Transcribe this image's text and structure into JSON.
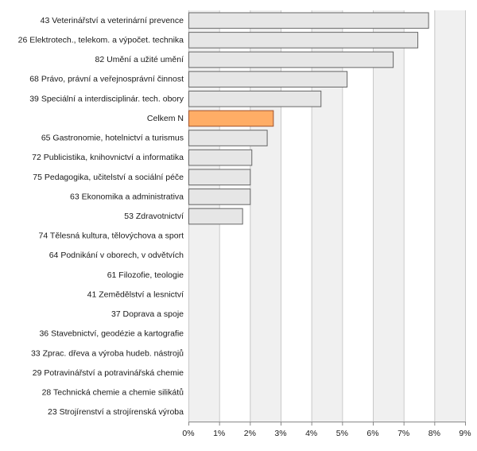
{
  "chart_data": {
    "type": "bar",
    "orientation": "horizontal",
    "categories": [
      "43 Veterinářství a veterinární prevence",
      "26 Elektrotech., telekom. a výpočet. technika",
      "82 Umění a užité umění",
      "68 Právo, právní a veřejnosprávní činnost",
      "39 Speciální a interdisciplinár. tech. obory",
      "Celkem N",
      "65 Gastronomie, hotelnictví a turismus",
      "72 Publicistika, knihovnictví a informatika",
      "75 Pedagogika, učitelství a sociální péče",
      "63 Ekonomika a administrativa",
      "53 Zdravotnictví",
      "74 Tělesná kultura, tělovýchova a sport",
      "64 Podnikání v oborech, v odvětvích",
      "61 Filozofie, teologie",
      "41 Zemědělství a lesnictví",
      "37 Doprava a spoje",
      "36 Stavebnictví, geodézie a kartografie",
      "33 Zprac. dřeva a výroba hudeb. nástrojů",
      "29 Potravinářství a potravinářská chemie",
      "28 Technická chemie a chemie silikátů",
      "23 Strojírenství a strojírenská výroba"
    ],
    "values": [
      7.8,
      7.45,
      6.65,
      5.15,
      4.3,
      2.75,
      2.55,
      2.05,
      2.0,
      2.0,
      1.75,
      0,
      0,
      0,
      0,
      0,
      0,
      0,
      0,
      0,
      0
    ],
    "highlight_index": 5,
    "xlim": [
      0,
      9
    ],
    "xticks": [
      "0%",
      "1%",
      "2%",
      "3%",
      "4%",
      "5%",
      "6%",
      "7%",
      "8%",
      "9%"
    ],
    "xlabel": "",
    "ylabel": "",
    "title": "",
    "grid": true,
    "colors": {
      "bar": "#e6e6e6",
      "bar_stroke": "#666666",
      "highlight": "#ffad66",
      "highlight_stroke": "#a0522d",
      "band_a": "#f0f0f0",
      "band_b": "#ffffff",
      "grid": "#c8c8c8"
    }
  }
}
